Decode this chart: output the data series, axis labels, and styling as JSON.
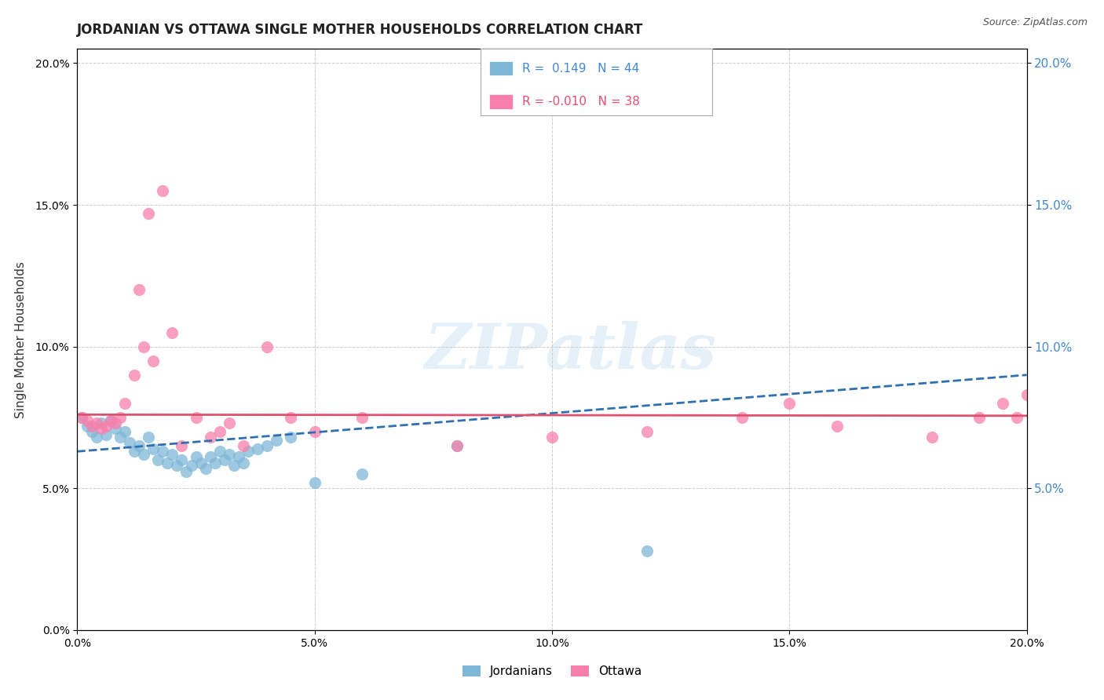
{
  "title": "JORDANIAN VS OTTAWA SINGLE MOTHER HOUSEHOLDS CORRELATION CHART",
  "source": "Source: ZipAtlas.com",
  "ylabel": "Single Mother Households",
  "watermark": "ZIPatlas",
  "xlim": [
    0.0,
    0.2
  ],
  "ylim": [
    0.0,
    0.205
  ],
  "legend": {
    "R1": " 0.149",
    "N1": "44",
    "R2": "-0.010",
    "N2": "38"
  },
  "jordanians_color": "#7eb8d8",
  "ottawa_color": "#f87fab",
  "trend_jordan_color": "#3070b0",
  "trend_ottawa_color": "#e05070",
  "jordanians_x": [
    0.001,
    0.002,
    0.003,
    0.004,
    0.005,
    0.006,
    0.007,
    0.008,
    0.009,
    0.01,
    0.011,
    0.012,
    0.013,
    0.014,
    0.015,
    0.016,
    0.017,
    0.018,
    0.019,
    0.02,
    0.021,
    0.022,
    0.023,
    0.024,
    0.025,
    0.026,
    0.027,
    0.028,
    0.029,
    0.03,
    0.031,
    0.032,
    0.033,
    0.034,
    0.035,
    0.036,
    0.038,
    0.04,
    0.042,
    0.045,
    0.05,
    0.06,
    0.08,
    0.12
  ],
  "jordanians_y": [
    0.075,
    0.072,
    0.07,
    0.068,
    0.073,
    0.069,
    0.074,
    0.071,
    0.068,
    0.07,
    0.066,
    0.063,
    0.065,
    0.062,
    0.068,
    0.064,
    0.06,
    0.063,
    0.059,
    0.062,
    0.058,
    0.06,
    0.056,
    0.058,
    0.061,
    0.059,
    0.057,
    0.061,
    0.059,
    0.063,
    0.06,
    0.062,
    0.058,
    0.061,
    0.059,
    0.063,
    0.064,
    0.065,
    0.067,
    0.068,
    0.052,
    0.055,
    0.065,
    0.028
  ],
  "ottawa_x": [
    0.001,
    0.002,
    0.003,
    0.004,
    0.005,
    0.006,
    0.007,
    0.008,
    0.009,
    0.01,
    0.012,
    0.013,
    0.014,
    0.015,
    0.016,
    0.018,
    0.02,
    0.022,
    0.025,
    0.028,
    0.03,
    0.032,
    0.035,
    0.04,
    0.045,
    0.05,
    0.06,
    0.08,
    0.1,
    0.12,
    0.14,
    0.15,
    0.16,
    0.18,
    0.19,
    0.195,
    0.198,
    0.2
  ],
  "ottawa_y": [
    0.075,
    0.074,
    0.072,
    0.073,
    0.071,
    0.072,
    0.074,
    0.073,
    0.075,
    0.08,
    0.09,
    0.12,
    0.1,
    0.147,
    0.095,
    0.155,
    0.105,
    0.065,
    0.075,
    0.068,
    0.07,
    0.073,
    0.065,
    0.1,
    0.075,
    0.07,
    0.075,
    0.065,
    0.068,
    0.07,
    0.075,
    0.08,
    0.072,
    0.068,
    0.075,
    0.08,
    0.075,
    0.083
  ],
  "background_color": "#ffffff",
  "grid_color": "#c8c8c8",
  "title_fontsize": 12,
  "axis_fontsize": 10
}
